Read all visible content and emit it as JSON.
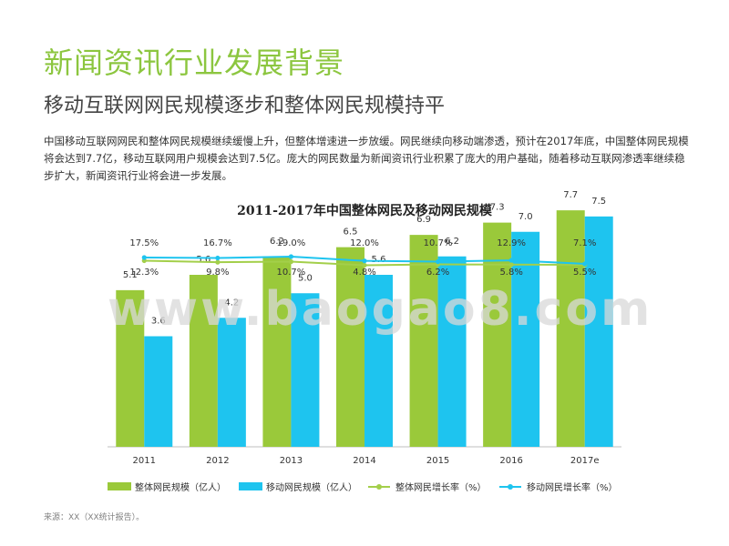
{
  "header": {
    "title": "新闻资讯行业发展背景",
    "subtitle": "移动互联网网民规模逐步和整体网民规模持平"
  },
  "body_text": "中国移动互联网网民和整体网民规模继续缓慢上升，但整体增速进一步放缓。网民继续向移动端渗透，预计在2017年底，中国整体网民规模将会达到7.7亿，移动互联网用户规模会达到7.5亿。庞大的网民数量为新闻资讯行业积累了庞大的用户基础，随着移动互联网渗透率继续稳步扩大，新闻资讯行业将会进一步发展。",
  "watermark": "www.baogao8.com",
  "source": "来源：XX（XX统计报告）。",
  "colors": {
    "title_green": "#8cc63f",
    "overall_bar": "#9ac93a",
    "mobile_bar": "#1ec4ef",
    "overall_line": "#a3cf4a",
    "mobile_line": "#1ec4ef"
  },
  "chart_data": {
    "type": "bar",
    "title": "2011-2017年中国整体网民及移动网民规模",
    "categories": [
      "2011",
      "2012",
      "2013",
      "2014",
      "2015",
      "2016",
      "2017e"
    ],
    "series": [
      {
        "name": "整体网民规模（亿人）",
        "values": [
          5.1,
          5.6,
          6.2,
          6.5,
          6.9,
          7.3,
          7.7
        ]
      },
      {
        "name": "移动网民规模（亿人）",
        "values": [
          3.6,
          4.2,
          5.0,
          5.6,
          6.2,
          7.0,
          7.5
        ]
      }
    ],
    "bar_ylim": [
      0,
      8
    ],
    "growth_series": [
      {
        "name": "整体网民增长率（%）",
        "values": [
          12.3,
          9.8,
          10.7,
          4.8,
          6.2,
          5.8,
          5.5
        ],
        "labels": [
          "12.3%",
          "9.8%",
          "10.7%",
          "4.8%",
          "6.2%",
          "5.8%",
          "5.5%"
        ]
      },
      {
        "name": "移动网民增长率（%）",
        "values": [
          17.5,
          16.7,
          19.0,
          12.0,
          10.7,
          12.9,
          7.1
        ],
        "labels": [
          "17.5%",
          "16.7%",
          "19.0%",
          "12.0%",
          "10.7%",
          "12.9%",
          "7.1%"
        ]
      }
    ],
    "legend_position": "bottom"
  }
}
